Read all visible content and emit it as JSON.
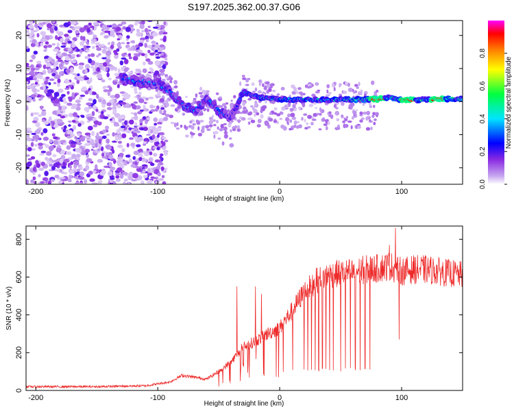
{
  "title": "S197.2025.362.00.37.G06",
  "chart_data": [
    {
      "type": "heatmap",
      "name": "spectrogram",
      "xlabel": "Height of straight line (km)",
      "ylabel": "Frequency (Hz)",
      "xlim": [
        -208,
        150
      ],
      "ylim": [
        -25,
        24.5
      ],
      "xticks": [
        -200,
        -100,
        0,
        100
      ],
      "yticks": [
        -20,
        -10,
        0,
        10,
        20
      ],
      "colorbar": {
        "label": "Normalized spectral amplitude",
        "range": [
          0,
          1
        ],
        "ticks": [
          "0.0",
          "0.2",
          "0.4",
          "0.6",
          "0.8"
        ]
      },
      "ridge": {
        "description_points_x": [
          -130,
          -115,
          -100,
          -90,
          -80,
          -70,
          -60,
          -50,
          -40,
          -30,
          -20,
          -10,
          0,
          10,
          20,
          30,
          40,
          50,
          60,
          70,
          80,
          90,
          100,
          110,
          120,
          130,
          140,
          150
        ],
        "description_points_y": [
          7,
          6,
          5.5,
          3,
          -1,
          -3,
          1,
          -3,
          -5,
          3,
          1.5,
          1,
          0.8,
          0.6,
          0.7,
          0.6,
          0.5,
          0.6,
          0.6,
          0.7,
          0.7,
          1.2,
          0.5,
          0.5,
          0.6,
          0.8,
          0.8,
          0.8
        ],
        "peak_amplitude_near_x": [
          80,
          105,
          130
        ]
      }
    },
    {
      "type": "line",
      "name": "snr",
      "xlabel": "Height of straight line (km)",
      "ylabel": "SNR (10 * v/v)",
      "xlim": [
        -208,
        150
      ],
      "ylim": [
        0,
        870
      ],
      "xticks": [
        -200,
        -100,
        0,
        100
      ],
      "yticks": [
        0,
        200,
        400,
        600,
        800
      ],
      "color": "#ee2a2a",
      "envelope_x": [
        -208,
        -150,
        -110,
        -90,
        -80,
        -70,
        -60,
        -50,
        -40,
        -30,
        -20,
        -10,
        0,
        10,
        20,
        30,
        40,
        50,
        60,
        70,
        80,
        90,
        100,
        110,
        120,
        130,
        140,
        150
      ],
      "envelope_y": [
        20,
        20,
        25,
        45,
        80,
        70,
        60,
        100,
        150,
        230,
        260,
        300,
        330,
        420,
        520,
        580,
        610,
        620,
        625,
        640,
        645,
        660,
        630,
        640,
        640,
        630,
        620,
        610
      ],
      "dropouts_x": [
        20,
        23,
        26,
        29,
        32,
        35,
        38,
        41,
        44,
        50,
        54,
        58,
        62,
        66,
        70,
        74
      ],
      "dropout_y": 100,
      "spikes": [
        [
          -35,
          550
        ],
        [
          -20,
          550
        ],
        [
          -15,
          510
        ],
        [
          90,
          770
        ],
        [
          95,
          860
        ],
        [
          98,
          270
        ]
      ]
    }
  ]
}
